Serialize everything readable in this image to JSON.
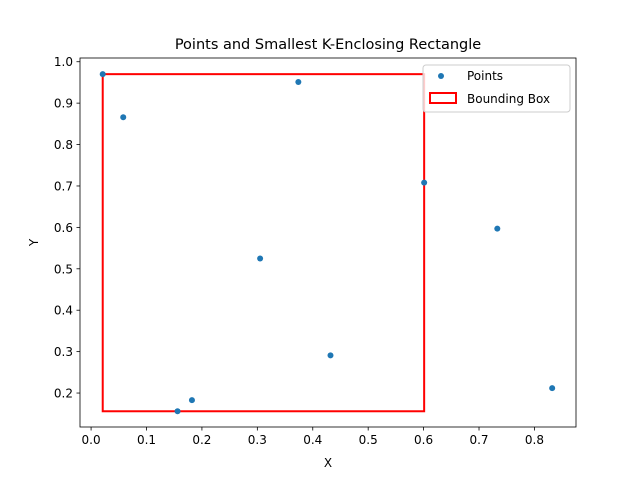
{
  "chart_data": {
    "type": "scatter",
    "title": "Points and Smallest K-Enclosing Rectangle",
    "xlabel": "X",
    "ylabel": "Y",
    "xlim": [
      -0.02,
      0.875
    ],
    "ylim": [
      0.118,
      1.009
    ],
    "xticks": [
      0.0,
      0.1,
      0.2,
      0.3,
      0.4,
      0.5,
      0.6,
      0.7,
      0.8
    ],
    "xtick_labels": [
      "0.0",
      "0.1",
      "0.2",
      "0.3",
      "0.4",
      "0.5",
      "0.6",
      "0.7",
      "0.8"
    ],
    "yticks": [
      0.2,
      0.3,
      0.4,
      0.5,
      0.6,
      0.7,
      0.8,
      0.9,
      1.0
    ],
    "ytick_labels": [
      "0.2",
      "0.3",
      "0.4",
      "0.5",
      "0.6",
      "0.7",
      "0.8",
      "0.9",
      "1.0"
    ],
    "grid": false,
    "legend_position": "top-right",
    "series": [
      {
        "name": "Points",
        "color": "#1f77b4",
        "x": [
          0.021,
          0.058,
          0.156,
          0.182,
          0.305,
          0.374,
          0.432,
          0.601,
          0.733,
          0.832
        ],
        "y": [
          0.97,
          0.866,
          0.156,
          0.183,
          0.525,
          0.951,
          0.291,
          0.708,
          0.597,
          0.212
        ]
      }
    ],
    "rectangle": {
      "name": "Bounding Box",
      "color": "#ff0000",
      "x0": 0.021,
      "x1": 0.601,
      "y0": 0.156,
      "y1": 0.97
    }
  }
}
